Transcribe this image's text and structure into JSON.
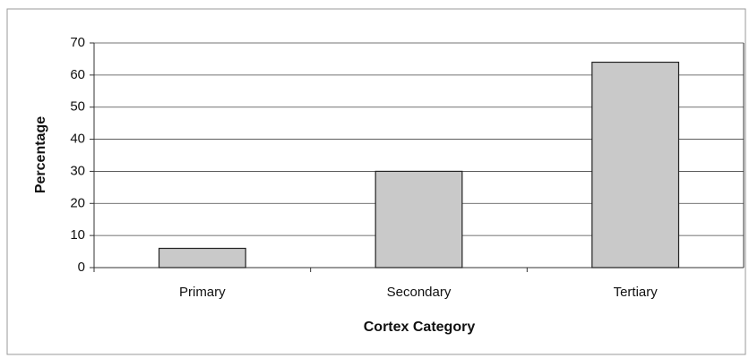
{
  "chart_data": {
    "type": "bar",
    "categories": [
      "Primary",
      "Secondary",
      "Tertiary"
    ],
    "values": [
      6,
      30,
      64
    ],
    "color": "#c9c9c9",
    "xlabel": "Cortex Category",
    "ylabel": "Percentage",
    "ylim": [
      0,
      70
    ],
    "yticks": [
      0,
      10,
      20,
      30,
      40,
      50,
      60,
      70
    ],
    "grid": true
  }
}
